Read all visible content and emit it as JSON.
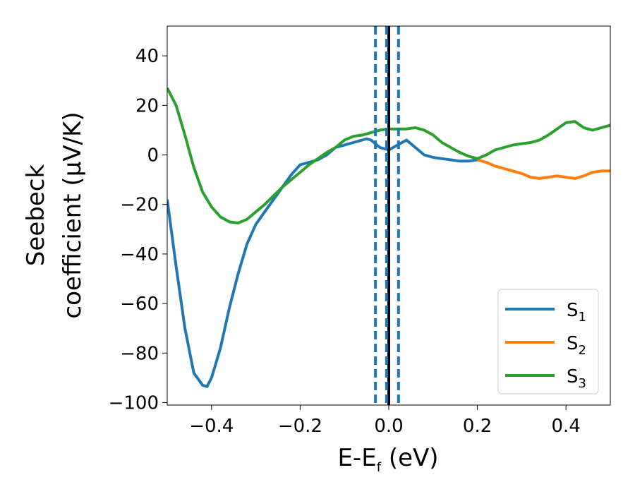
{
  "chart_data": {
    "type": "line",
    "xlabel_main": "E-E",
    "xlabel_sub": "f",
    "xlabel_unit": " (eV)",
    "ylabel_line1": "Seebeck",
    "ylabel_line2": "coefficient  (μV/K)",
    "xlim": [
      -0.5,
      0.5
    ],
    "ylim": [
      -101,
      52
    ],
    "xticks": [
      -0.4,
      -0.2,
      0.0,
      0.2,
      0.4
    ],
    "xtick_labels": [
      "−0.4",
      "−0.2",
      "0.0",
      "0.2",
      "0.4"
    ],
    "yticks": [
      -100,
      -80,
      -60,
      -40,
      -20,
      0,
      20,
      40
    ],
    "ytick_labels": [
      "−100",
      "−80",
      "−60",
      "−40",
      "−20",
      "0",
      "20",
      "40"
    ],
    "grid": false,
    "legend_position": "bottom-right",
    "vlines": [
      {
        "x": 0.0,
        "color": "#000000",
        "style": "solid"
      },
      {
        "x": -0.03,
        "color": "#1f77b4",
        "style": "dashed"
      },
      {
        "x": -0.005,
        "color": "#1f77b4",
        "style": "dashed"
      },
      {
        "x": 0.022,
        "color": "#1f77b4",
        "style": "dashed"
      }
    ],
    "series": [
      {
        "name": "S",
        "sub": "1",
        "color": "#1f77b4",
        "x": [
          -0.5,
          -0.48,
          -0.46,
          -0.44,
          -0.42,
          -0.41,
          -0.4,
          -0.38,
          -0.36,
          -0.34,
          -0.32,
          -0.3,
          -0.28,
          -0.26,
          -0.24,
          -0.22,
          -0.2,
          -0.18,
          -0.16,
          -0.14,
          -0.12,
          -0.1,
          -0.08,
          -0.06,
          -0.05,
          -0.04,
          -0.02,
          0.0,
          0.02,
          0.04,
          0.06,
          0.08,
          0.1,
          0.12,
          0.14,
          0.16,
          0.18,
          0.2
        ],
        "y": [
          -18,
          -45,
          -70,
          -88,
          -93,
          -93.5,
          -90,
          -78,
          -62,
          -48,
          -36,
          -28,
          -23,
          -18,
          -13,
          -8,
          -4,
          -3,
          -2,
          0,
          3,
          4,
          5,
          6,
          6.5,
          6,
          3,
          2,
          4,
          6,
          3,
          0,
          -1,
          -1.5,
          -2,
          -2.5,
          -2.5,
          -2
        ]
      },
      {
        "name": "S",
        "sub": "2",
        "color": "#ff7f0e",
        "x": [
          0.2,
          0.22,
          0.24,
          0.26,
          0.28,
          0.3,
          0.32,
          0.34,
          0.36,
          0.38,
          0.4,
          0.42,
          0.44,
          0.46,
          0.48,
          0.5
        ],
        "y": [
          -2,
          -3,
          -4.5,
          -5.5,
          -6.5,
          -7.5,
          -9,
          -9.5,
          -9,
          -8.5,
          -9,
          -9.5,
          -8.5,
          -7,
          -6.5,
          -6.5
        ]
      },
      {
        "name": "S",
        "sub": "3",
        "color": "#2ca02c",
        "x": [
          -0.5,
          -0.48,
          -0.46,
          -0.44,
          -0.42,
          -0.4,
          -0.38,
          -0.36,
          -0.34,
          -0.32,
          -0.3,
          -0.28,
          -0.26,
          -0.24,
          -0.22,
          -0.2,
          -0.18,
          -0.16,
          -0.14,
          -0.12,
          -0.1,
          -0.08,
          -0.06,
          -0.04,
          -0.02,
          0.0,
          0.02,
          0.04,
          0.06,
          0.08,
          0.1,
          0.12,
          0.14,
          0.16,
          0.18,
          0.2,
          0.22,
          0.24,
          0.26,
          0.28,
          0.3,
          0.32,
          0.34,
          0.36,
          0.38,
          0.4,
          0.42,
          0.44,
          0.46,
          0.48,
          0.5
        ],
        "y": [
          27,
          20,
          8,
          -5,
          -15,
          -21,
          -25,
          -27,
          -27.5,
          -26,
          -23,
          -20,
          -16.5,
          -13,
          -10,
          -7,
          -4,
          -1.5,
          1,
          3,
          6,
          7.5,
          8,
          9,
          10,
          10.5,
          10.5,
          10.5,
          11,
          10,
          8,
          5,
          3,
          1,
          -0.5,
          -1.5,
          0,
          2,
          3,
          4,
          4.5,
          5,
          6,
          8,
          10.5,
          13,
          13.5,
          11,
          10,
          11,
          12
        ]
      }
    ]
  }
}
